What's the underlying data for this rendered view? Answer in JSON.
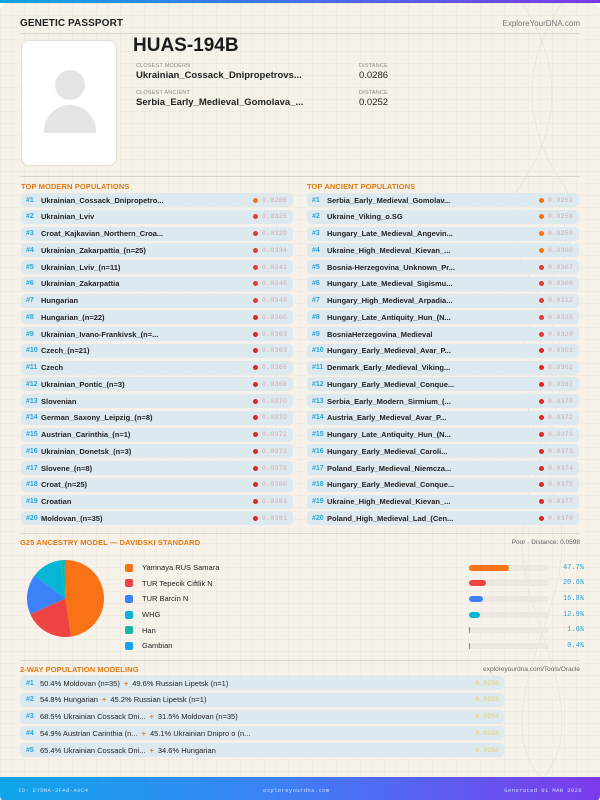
{
  "header": {
    "title": "GENETIC PASSPORT",
    "site": "ExploreYourDNA.com"
  },
  "profile": {
    "sample_id": "HUAS-194B",
    "closest_modern_label": "CLOSEST MODERN",
    "closest_modern": "Ukrainian_Cossack_Dnipropetrovs...",
    "closest_ancient_label": "CLOSEST ANCIENT",
    "closest_ancient": "Serbia_Early_Medieval_Gomolava_...",
    "distance_label": "DISTANCE",
    "modern_distance": "0.0286",
    "ancient_distance": "0.0252"
  },
  "modern": {
    "title": "TOP MODERN POPULATIONS",
    "items": [
      {
        "rank": "#1",
        "name": "Ukrainian_Cossack_Dnipropetro...",
        "dist": "0.0286",
        "color": "#f97316"
      },
      {
        "rank": "#2",
        "name": "Ukrainian_Lviv",
        "dist": "0.0325",
        "color": "#e23b3b"
      },
      {
        "rank": "#3",
        "name": "Croat_Kajkavian_Northern_Croa...",
        "dist": "0.0329",
        "color": "#e23b3b"
      },
      {
        "rank": "#4",
        "name": "Ukrainian_Zakarpattia_(n=25)",
        "dist": "0.0334",
        "color": "#e23b3b"
      },
      {
        "rank": "#5",
        "name": "Ukrainian_Lviv_(n=11)",
        "dist": "0.0341",
        "color": "#e23b3b"
      },
      {
        "rank": "#6",
        "name": "Ukrainian_Zakarpattia",
        "dist": "0.0346",
        "color": "#e23b3b"
      },
      {
        "rank": "#7",
        "name": "Hungarian",
        "dist": "0.0348",
        "color": "#e23b3b"
      },
      {
        "rank": "#8",
        "name": "Hungarian_(n=22)",
        "dist": "0.0360",
        "color": "#dc2626"
      },
      {
        "rank": "#9",
        "name": "Ukrainian_Ivano-Frankivsk_(n=...",
        "dist": "0.0363",
        "color": "#dc2626"
      },
      {
        "rank": "#10",
        "name": "Czech_(n=21)",
        "dist": "0.0363",
        "color": "#dc2626"
      },
      {
        "rank": "#11",
        "name": "Czech",
        "dist": "0.0365",
        "color": "#dc2626"
      },
      {
        "rank": "#12",
        "name": "Ukrainian_Pontic_(n=3)",
        "dist": "0.0368",
        "color": "#dc2626"
      },
      {
        "rank": "#13",
        "name": "Slovenian",
        "dist": "0.0370",
        "color": "#dc2626"
      },
      {
        "rank": "#14",
        "name": "German_Saxony_Leipzig_(n=8)",
        "dist": "0.0372",
        "color": "#dc2626"
      },
      {
        "rank": "#15",
        "name": "Austrian_Carinthia_(n=1)",
        "dist": "0.0372",
        "color": "#dc2626"
      },
      {
        "rank": "#16",
        "name": "Ukrainian_Donetsk_(n=3)",
        "dist": "0.0373",
        "color": "#dc2626"
      },
      {
        "rank": "#17",
        "name": "Slovene_(n=8)",
        "dist": "0.0378",
        "color": "#dc2626"
      },
      {
        "rank": "#18",
        "name": "Croat_(n=25)",
        "dist": "0.0380",
        "color": "#dc2626"
      },
      {
        "rank": "#19",
        "name": "Croatian",
        "dist": "0.0381",
        "color": "#dc2626"
      },
      {
        "rank": "#20",
        "name": "Moldovan_(n=35)",
        "dist": "0.0381",
        "color": "#dc2626"
      }
    ]
  },
  "ancient": {
    "title": "TOP ANCIENT POPULATIONS",
    "items": [
      {
        "rank": "#1",
        "name": "Serbia_Early_Medieval_Gomolav...",
        "dist": "0.0252",
        "color": "#f97316"
      },
      {
        "rank": "#2",
        "name": "Ukraine_Viking_o.SG",
        "dist": "0.0258",
        "color": "#f97316"
      },
      {
        "rank": "#3",
        "name": "Hungary_Late_Medieval_Angevin...",
        "dist": "0.0259",
        "color": "#f97316"
      },
      {
        "rank": "#4",
        "name": "Ukraine_High_Medieval_Kievan_...",
        "dist": "0.0300",
        "color": "#f97316"
      },
      {
        "rank": "#5",
        "name": "Bosnia-Herzegovina_Unknown_Pr...",
        "dist": "0.0307",
        "color": "#e23b3b"
      },
      {
        "rank": "#6",
        "name": "Hungary_Late_Medieval_Sigismu...",
        "dist": "0.0309",
        "color": "#e23b3b"
      },
      {
        "rank": "#7",
        "name": "Hungary_High_Medieval_Arpadia...",
        "dist": "0.0312",
        "color": "#e23b3b"
      },
      {
        "rank": "#8",
        "name": "Hungary_Late_Antiquity_Hun_(N...",
        "dist": "0.0325",
        "color": "#e23b3b"
      },
      {
        "rank": "#9",
        "name": "BosniaHerzegovina_Medieval",
        "dist": "0.0328",
        "color": "#e23b3b"
      },
      {
        "rank": "#10",
        "name": "Hungary_Early_Medieval_Avar_P...",
        "dist": "0.0351",
        "color": "#dc2626"
      },
      {
        "rank": "#11",
        "name": "Denmark_Early_Medieval_Viking...",
        "dist": "0.0362",
        "color": "#dc2626"
      },
      {
        "rank": "#12",
        "name": "Hungary_Early_Medieval_Conque...",
        "dist": "0.0367",
        "color": "#dc2626"
      },
      {
        "rank": "#13",
        "name": "Serbia_Early_Modern_Sirmium_(...",
        "dist": "0.0370",
        "color": "#dc2626"
      },
      {
        "rank": "#14",
        "name": "Austria_Early_Medieval_Avar_P...",
        "dist": "0.0372",
        "color": "#dc2626"
      },
      {
        "rank": "#15",
        "name": "Hungary_Late_Antiquity_Hun_(N...",
        "dist": "0.0373",
        "color": "#dc2626"
      },
      {
        "rank": "#16",
        "name": "Hungary_Early_Medieval_Caroli...",
        "dist": "0.0373",
        "color": "#dc2626"
      },
      {
        "rank": "#17",
        "name": "Poland_Early_Medieval_Niemcza...",
        "dist": "0.0374",
        "color": "#dc2626"
      },
      {
        "rank": "#18",
        "name": "Hungary_Early_Medieval_Conque...",
        "dist": "0.0375",
        "color": "#dc2626"
      },
      {
        "rank": "#19",
        "name": "Ukraine_High_Medieval_Kievan_...",
        "dist": "0.0377",
        "color": "#dc2626"
      },
      {
        "rank": "#20",
        "name": "Poland_High_Medieval_Lad_(Cen...",
        "dist": "0.0378",
        "color": "#dc2626"
      }
    ]
  },
  "ancestry": {
    "title": "G25 ANCESTRY MODEL — DAVIDSKI STANDARD",
    "fit": "Poor · Distance: 0.0598",
    "components": [
      {
        "name": "Yamnaya RUS Samara",
        "pct": "47.7%",
        "value": 47.7,
        "color": "#f97316"
      },
      {
        "name": "TUR Tepecik Ciftlik N",
        "pct": "20.6%",
        "value": 20.6,
        "color": "#ef4444"
      },
      {
        "name": "TUR Barcin N",
        "pct": "16.8%",
        "value": 16.8,
        "color": "#3b82f6"
      },
      {
        "name": "WHG",
        "pct": "12.9%",
        "value": 12.9,
        "color": "#06b6d4"
      },
      {
        "name": "Han",
        "pct": "1.6%",
        "value": 1.6,
        "color": "#14b8a6"
      },
      {
        "name": "Gambian",
        "pct": "0.4%",
        "value": 0.4,
        "color": "#0ea5e9"
      }
    ]
  },
  "chart_data": {
    "type": "pie",
    "title": "G25 ANCESTRY MODEL — DAVIDSKI STANDARD",
    "categories": [
      "Yamnaya RUS Samara",
      "TUR Tepecik Ciftlik N",
      "TUR Barcin N",
      "WHG",
      "Han",
      "Gambian"
    ],
    "values": [
      47.7,
      20.6,
      16.8,
      12.9,
      1.6,
      0.4
    ],
    "colors": [
      "#f97316",
      "#ef4444",
      "#3b82f6",
      "#06b6d4",
      "#14b8a6",
      "#0ea5e9"
    ],
    "legend_position": "right"
  },
  "two_way": {
    "title": "2-WAY POPULATION MODELING",
    "link": "exploreyourdna.com/Tools/Oracle",
    "items": [
      {
        "rank": "#1",
        "a": "50.4% Moldovan (n=35)",
        "plus": "+",
        "b": "49.6% Russian Lipetsk (n=1)",
        "dist": "0.0250"
      },
      {
        "rank": "#2",
        "a": "54.8% Hungarian",
        "plus": "+",
        "b": "45.2% Russian Lipetsk (n=1)",
        "dist": "0.0252"
      },
      {
        "rank": "#3",
        "a": "68.5% Ukrainian Cossack Dni...",
        "plus": "+",
        "b": "31.5% Moldovan (n=35)",
        "dist": "0.0254"
      },
      {
        "rank": "#4",
        "a": "54.9% Austrian Carinthia (n...",
        "plus": "+",
        "b": "45.1% Ukrainian Dnipro o (n...",
        "dist": "0.0256"
      },
      {
        "rank": "#5",
        "a": "65.4% Ukrainian Cossack Dni...",
        "plus": "+",
        "b": "34.6% Hungarian",
        "dist": "0.0258"
      }
    ]
  },
  "footer": {
    "id": "ID: EYDNA-2FA8-A9C4",
    "site": "exploreyourdna.com",
    "generated": "Generated 01 MAR 2026"
  }
}
